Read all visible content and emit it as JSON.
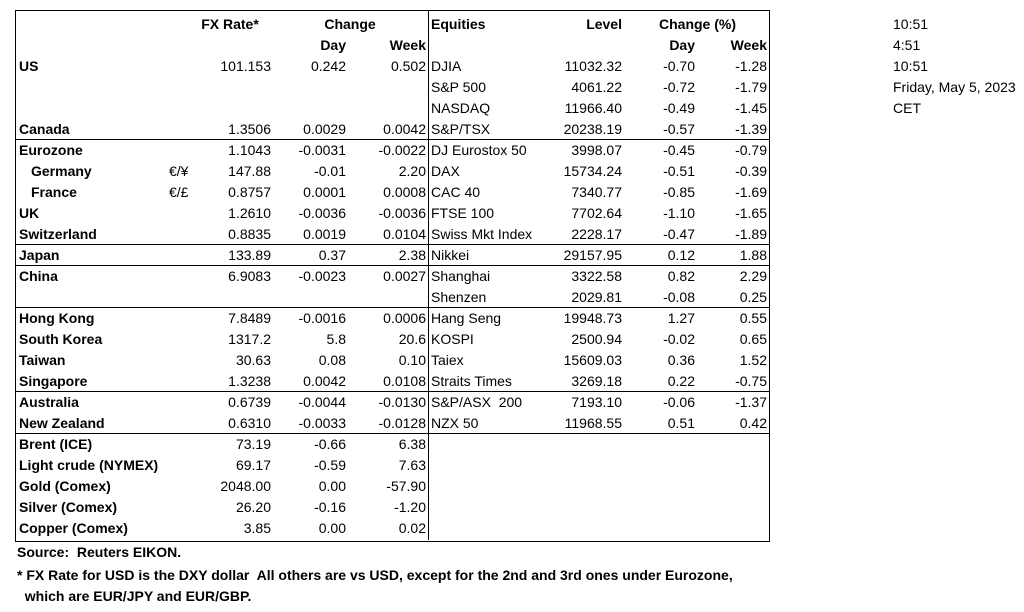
{
  "header": {
    "fx_rate": "FX Rate*",
    "change": "Change",
    "day": "Day",
    "week": "Week",
    "equities": "Equities",
    "level": "Level",
    "change_pct": "Change (%)",
    "eq_day": "Day",
    "eq_week": "Week"
  },
  "rows": [
    {
      "country": "US",
      "fx": "101.153",
      "day": "0.242",
      "week": "0.502",
      "equity": "DJIA",
      "level": "11032.32",
      "eq_day": "-0.70",
      "eq_week": "-1.28"
    },
    {
      "equity": "S&P 500",
      "level": "4061.22",
      "eq_day": "-0.72",
      "eq_week": "-1.79"
    },
    {
      "equity": "NASDAQ",
      "level": "11966.40",
      "eq_day": "-0.49",
      "eq_week": "-1.45"
    },
    {
      "country": "Canada",
      "fx": "1.3506",
      "day": "0.0029",
      "week": "0.0042",
      "equity": "S&P/TSX",
      "level": "20238.19",
      "eq_day": "-0.57",
      "eq_week": "-1.39"
    },
    {
      "country": "Eurozone",
      "fx": "1.1043",
      "day": "-0.0031",
      "week": "-0.0022",
      "equity": "DJ Eurostox 50",
      "level": "3998.07",
      "eq_day": "-0.45",
      "eq_week": "-0.79"
    },
    {
      "country": "Germany",
      "symbol": "€/¥",
      "fx": "147.88",
      "day": "-0.01",
      "week": "2.20",
      "equity": "DAX",
      "level": "15734.24",
      "eq_day": "-0.51",
      "eq_week": "-0.39"
    },
    {
      "country": "France",
      "symbol": "€/£",
      "fx": "0.8757",
      "day": "0.0001",
      "week": "0.0008",
      "equity": "CAC 40",
      "level": "7340.77",
      "eq_day": "-0.85",
      "eq_week": "-1.69"
    },
    {
      "country": "UK",
      "fx": "1.2610",
      "day": "-0.0036",
      "week": "-0.0036",
      "equity": "FTSE 100",
      "level": "7702.64",
      "eq_day": "-1.10",
      "eq_week": "-1.65"
    },
    {
      "country": "Switzerland",
      "fx": "0.8835",
      "day": "0.0019",
      "week": "0.0104",
      "equity": "Swiss Mkt Index",
      "level": "2228.17",
      "eq_day": "-0.47",
      "eq_week": "-1.89"
    },
    {
      "country": "Japan",
      "fx": "133.89",
      "day": "0.37",
      "week": "2.38",
      "equity": "Nikkei",
      "level": "29157.95",
      "eq_day": "0.12",
      "eq_week": "1.88"
    },
    {
      "country": "China",
      "fx": "6.9083",
      "day": "-0.0023",
      "week": "0.0027",
      "equity": "Shanghai",
      "level": "3322.58",
      "eq_day": "0.82",
      "eq_week": "2.29"
    },
    {
      "equity": "Shenzen",
      "level": "2029.81",
      "eq_day": "-0.08",
      "eq_week": "0.25"
    },
    {
      "country": "Hong Kong",
      "fx": "7.8489",
      "day": "-0.0016",
      "week": "0.0006",
      "equity": "Hang Seng",
      "level": "19948.73",
      "eq_day": "1.27",
      "eq_week": "0.55"
    },
    {
      "country": "South Korea",
      "fx": "1317.2",
      "day": "5.8",
      "week": "20.6",
      "equity": "KOSPI",
      "level": "2500.94",
      "eq_day": "-0.02",
      "eq_week": "0.65"
    },
    {
      "country": "Taiwan",
      "fx": "30.63",
      "day": "0.08",
      "week": "0.10",
      "equity": "Taiex",
      "level": "15609.03",
      "eq_day": "0.36",
      "eq_week": "1.52"
    },
    {
      "country": "Singapore",
      "fx": "1.3238",
      "day": "0.0042",
      "week": "0.0108",
      "equity": "Straits Times",
      "level": "3269.18",
      "eq_day": "0.22",
      "eq_week": "-0.75"
    },
    {
      "country": "Australia",
      "fx": "0.6739",
      "day": "-0.0044",
      "week": "-0.0130",
      "equity": "S&P/ASX  200",
      "level": "7193.10",
      "eq_day": "-0.06",
      "eq_week": "-1.37"
    },
    {
      "country": "New Zealand",
      "fx": "0.6310",
      "day": "-0.0033",
      "week": "-0.0128",
      "equity": "NZX 50",
      "level": "11968.55",
      "eq_day": "0.51",
      "eq_week": "0.42"
    },
    {
      "country": "Brent (ICE)",
      "fx": "73.19",
      "day": "-0.66",
      "week": "6.38"
    },
    {
      "country": "Light crude (NYMEX)",
      "fx": "69.17",
      "day": "-0.59",
      "week": "7.63"
    },
    {
      "country": "Gold (Comex)",
      "fx": "2048.00",
      "day": "0.00",
      "week": "-57.90"
    },
    {
      "country": "Silver (Comex)",
      "fx": "26.20",
      "day": "-0.16",
      "week": "-1.20"
    },
    {
      "country": "Copper (Comex)",
      "fx": "3.85",
      "day": "0.00",
      "week": "0.02"
    }
  ],
  "side": [
    "10:51",
    "4:51",
    "10:51",
    "Friday, May 5, 2023",
    "CET"
  ],
  "footer": [
    "Source:  Reuters EIKON.",
    "* FX Rate for USD is the DXY dollar  All others are vs USD, except for the 2nd and 3rd ones under Eurozone,",
    "  which are EUR/JPY and EUR/GBP."
  ]
}
